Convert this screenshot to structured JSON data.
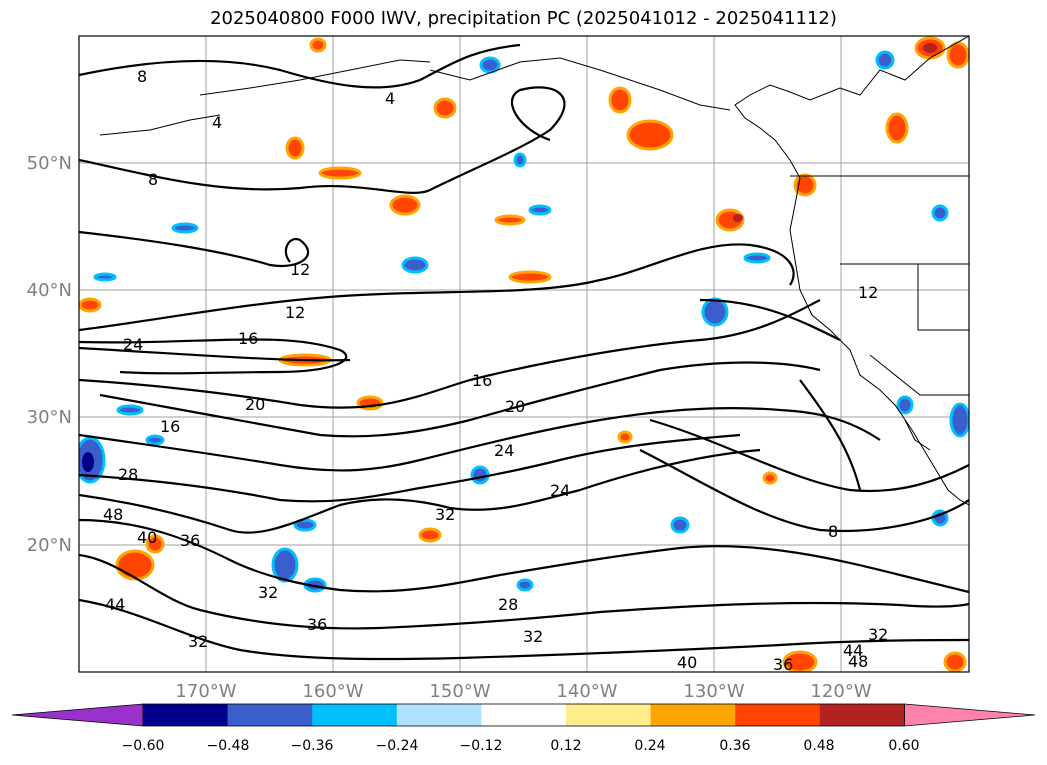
{
  "title": "2025040800 F000 IWV, precipitation PC (2025041012 - 2025041112)",
  "map": {
    "lat_labels": [
      "50°N",
      "40°N",
      "30°N",
      "20°N"
    ],
    "lon_labels": [
      "170°W",
      "160°W",
      "150°W",
      "140°W",
      "130°W",
      "120°W"
    ],
    "contour_labels": [
      "8",
      "8",
      "8",
      "4",
      "4",
      "12",
      "12",
      "12",
      "16",
      "16",
      "16",
      "20",
      "20",
      "24",
      "24",
      "24",
      "28",
      "28",
      "32",
      "32",
      "32",
      "32",
      "32",
      "36",
      "36",
      "36",
      "40",
      "40",
      "44",
      "44",
      "48",
      "48"
    ]
  },
  "colorbar": {
    "ticks": [
      "−0.60",
      "−0.48",
      "−0.36",
      "−0.24",
      "−0.12",
      "0.12",
      "0.24",
      "0.36",
      "0.48",
      "0.60"
    ],
    "colors": [
      "#9932cc",
      "#00008b",
      "#3a5fcd",
      "#00bfff",
      "#b0e2ff",
      "#ffffff",
      "#ffec8b",
      "#ffa500",
      "#ff4500",
      "#b22222",
      "#ff82ab"
    ]
  }
}
